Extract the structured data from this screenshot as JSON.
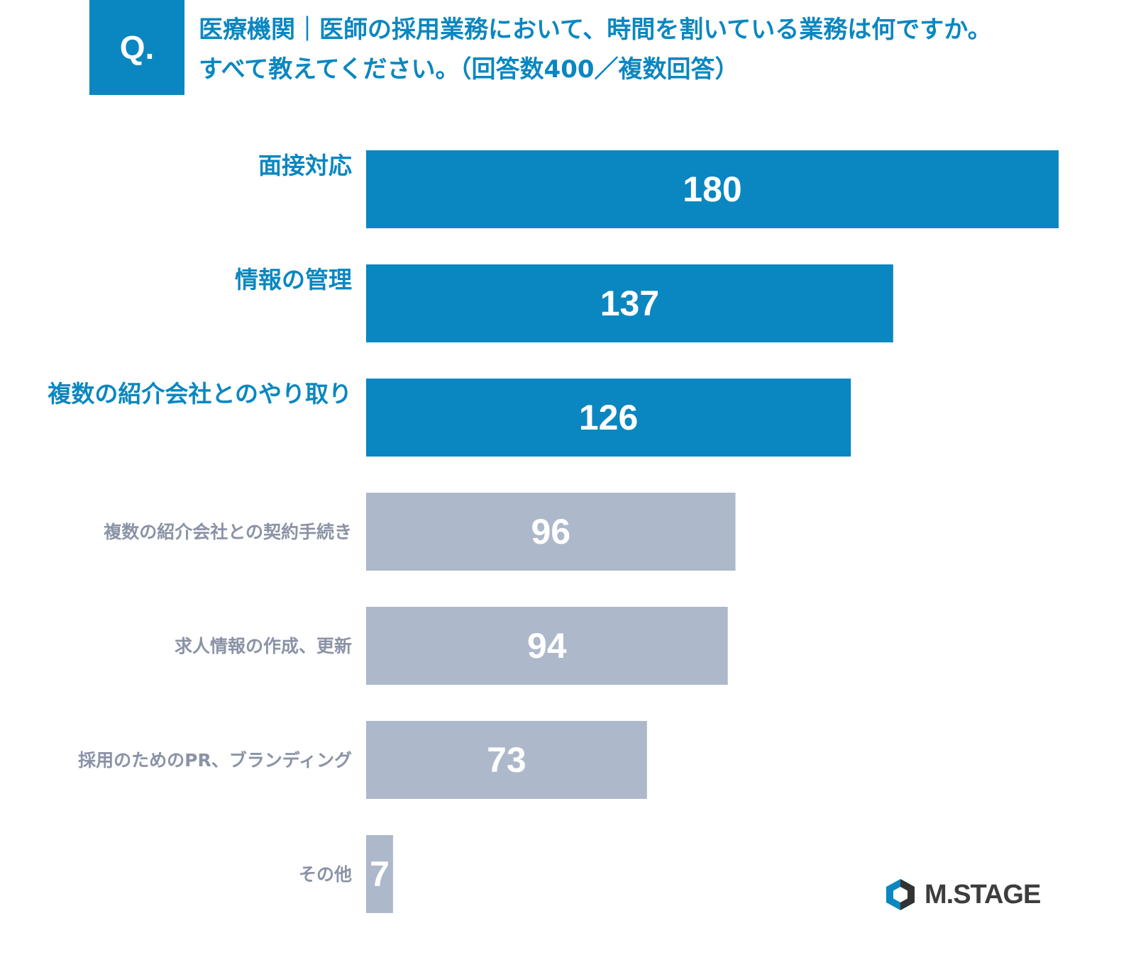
{
  "header": {
    "badge": "Q.",
    "question_line1": "医療機関｜医師の採用業務において、時間を割いている業務は何ですか。",
    "question_line2": "すべて教えてください。（回答数400／複数回答）"
  },
  "chart_data": {
    "type": "bar",
    "orientation": "horizontal",
    "categories": [
      "面接対応",
      "情報の管理",
      "複数の紹介会社とのやり取り",
      "複数の紹介会社との契約手続き",
      "求人情報の作成、更新",
      "採用のためのPR、ブランディング",
      "その他"
    ],
    "values": [
      180,
      137,
      126,
      96,
      94,
      73,
      7
    ],
    "highlighted": [
      true,
      true,
      true,
      false,
      false,
      false,
      false
    ],
    "xlim": [
      0,
      180
    ],
    "grid": false,
    "data_labels": true,
    "colors": {
      "highlight": "#0a87c0",
      "normal": "#adb8cb",
      "highlight_label": "#0a87c0",
      "normal_label": "#8a93a6",
      "value_text": "#ffffff"
    }
  },
  "logo": {
    "text": "M.STAGE",
    "icon": "hexagon-logo-icon",
    "colors": {
      "blue": "#0a87c0",
      "dark": "#333333"
    }
  }
}
